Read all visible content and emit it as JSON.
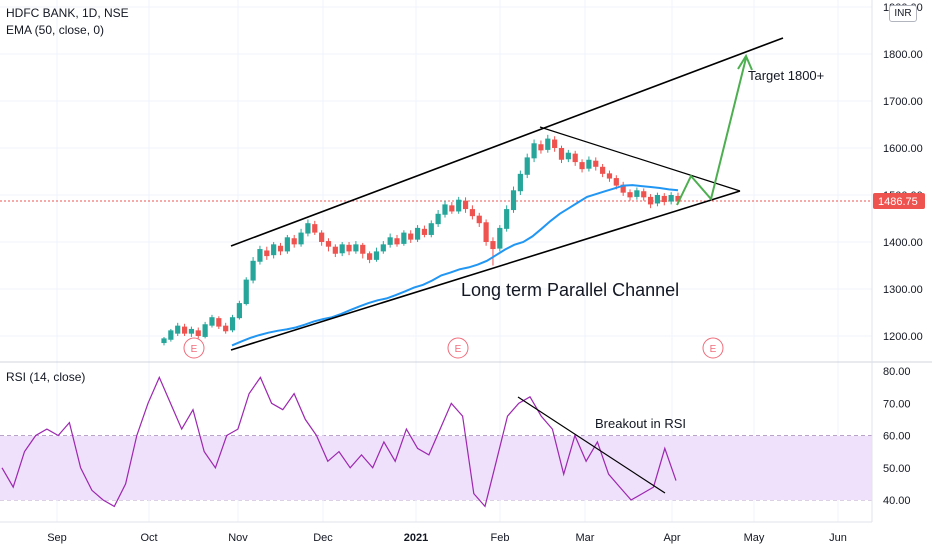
{
  "header": {
    "symbol": "HDFC BANK, 1D, NSE",
    "indicator": "EMA (50, close, 0)",
    "rsi_label": "RSI (14, close)",
    "currency": "INR"
  },
  "chart_data": {
    "type": "candlestick",
    "x_axis": {
      "labels": [
        "Sep",
        "Oct",
        "Nov",
        "Dec",
        "2021",
        "Feb",
        "Mar",
        "Apr",
        "May",
        "Jun"
      ],
      "bold_label": "2021"
    },
    "price_axis": {
      "ticks": [
        "1200.00",
        "1300.00",
        "1400.00",
        "1500.00",
        "1600.00",
        "1700.00",
        "1800.00",
        "1900.00"
      ],
      "range": [
        1170,
        1920
      ],
      "last_price": "1486.75",
      "last_price_color": "#ef5350"
    },
    "rsi_axis": {
      "ticks": [
        "40.00",
        "50.00",
        "60.00",
        "70.00",
        "80.00"
      ],
      "range": [
        33,
        82
      ],
      "band": [
        40,
        60
      ],
      "band_color": "#efe0fb"
    },
    "colors": {
      "up": "#26a69a",
      "down": "#ef5350",
      "ema": "#2196f3",
      "rsi": "#9c27b0",
      "projection": "#4caf50",
      "trendline": "#000000",
      "earnings": "#f06c7a"
    },
    "earnings_marker": "E",
    "ema": [
      [
        1180,
        1180
      ],
      [
        1188,
        1190
      ],
      [
        1196,
        1200
      ],
      [
        1202,
        1210
      ],
      [
        1207,
        1220
      ],
      [
        1211,
        1230
      ],
      [
        1214,
        1240
      ],
      [
        1218,
        1250
      ],
      [
        1224,
        1260
      ],
      [
        1231,
        1270
      ],
      [
        1236,
        1280
      ],
      [
        1240,
        1290
      ],
      [
        1247,
        1300
      ],
      [
        1255,
        1310
      ],
      [
        1263,
        1320
      ],
      [
        1270,
        1330
      ],
      [
        1276,
        1340
      ],
      [
        1280,
        1350
      ],
      [
        1287,
        1360
      ],
      [
        1295,
        1370
      ],
      [
        1303,
        1380
      ],
      [
        1309,
        1390
      ],
      [
        1318,
        1400
      ],
      [
        1329,
        1410
      ],
      [
        1335,
        1420
      ],
      [
        1342,
        1430
      ],
      [
        1346,
        1440
      ],
      [
        1352,
        1450
      ],
      [
        1360,
        1460
      ],
      [
        1372,
        1470
      ],
      [
        1384,
        1480
      ],
      [
        1394,
        1490
      ],
      [
        1400,
        1500
      ],
      [
        1412,
        1510
      ],
      [
        1428,
        1520
      ],
      [
        1445,
        1530
      ],
      [
        1460,
        1540
      ],
      [
        1472,
        1550
      ],
      [
        1484,
        1560
      ],
      [
        1496,
        1570
      ],
      [
        1502,
        1580
      ],
      [
        1508,
        1590
      ],
      [
        1514,
        1600
      ],
      [
        1520,
        1610
      ],
      [
        1521,
        1620
      ],
      [
        1519,
        1630
      ],
      [
        1517,
        1640
      ],
      [
        1515,
        1650
      ],
      [
        1512,
        1660
      ],
      [
        1510,
        1670
      ]
    ],
    "rsi": [
      [
        50,
        1000
      ],
      [
        44,
        1005
      ],
      [
        55,
        1015
      ],
      [
        60,
        1025
      ],
      [
        62,
        1035
      ],
      [
        60,
        1045
      ],
      [
        64,
        1055
      ],
      [
        50,
        1065
      ],
      [
        43,
        1075
      ],
      [
        40,
        1085
      ],
      [
        38,
        1100
      ],
      [
        45,
        1115
      ],
      [
        60,
        1130
      ],
      [
        70,
        1140
      ],
      [
        78,
        1150
      ],
      [
        70,
        1160
      ],
      [
        62,
        1170
      ],
      [
        68,
        1180
      ],
      [
        55,
        1190
      ],
      [
        50,
        1200
      ],
      [
        60,
        1210
      ],
      [
        62,
        1220
      ],
      [
        73,
        1230
      ],
      [
        78,
        1240
      ],
      [
        70,
        1250
      ],
      [
        68,
        1260
      ],
      [
        73,
        1270
      ],
      [
        65,
        1280
      ],
      [
        60,
        1290
      ],
      [
        52,
        1300
      ],
      [
        55,
        1310
      ],
      [
        50,
        1320
      ],
      [
        54,
        1330
      ],
      [
        50,
        1340
      ],
      [
        58,
        1350
      ],
      [
        52,
        1360
      ],
      [
        62,
        1370
      ],
      [
        56,
        1380
      ],
      [
        54,
        1390
      ],
      [
        62,
        1400
      ],
      [
        70,
        1410
      ],
      [
        66,
        1420
      ],
      [
        42,
        1430
      ],
      [
        38,
        1440
      ],
      [
        52,
        1450
      ],
      [
        66,
        1460
      ],
      [
        70,
        1470
      ],
      [
        72,
        1480
      ],
      [
        66,
        1490
      ],
      [
        62,
        1500
      ],
      [
        48,
        1510
      ],
      [
        60,
        1520
      ],
      [
        52,
        1530
      ],
      [
        58,
        1540
      ],
      [
        48,
        1550
      ],
      [
        44,
        1560
      ],
      [
        40,
        1570
      ],
      [
        42,
        1580
      ],
      [
        44,
        1590
      ],
      [
        56,
        1600
      ],
      [
        46,
        1610
      ]
    ],
    "candles": [
      [
        1185,
        1195,
        1180,
        1198
      ],
      [
        1192,
        1212,
        1188,
        1215
      ],
      [
        1205,
        1222,
        1200,
        1228
      ],
      [
        1220,
        1205,
        1200,
        1226
      ],
      [
        1205,
        1215,
        1198,
        1220
      ],
      [
        1212,
        1200,
        1195,
        1218
      ],
      [
        1198,
        1225,
        1195,
        1230
      ],
      [
        1222,
        1240,
        1218,
        1245
      ],
      [
        1238,
        1220,
        1215,
        1242
      ],
      [
        1222,
        1210,
        1205,
        1228
      ],
      [
        1212,
        1240,
        1208,
        1245
      ],
      [
        1238,
        1270,
        1235,
        1275
      ],
      [
        1268,
        1320,
        1265,
        1325
      ],
      [
        1318,
        1360,
        1312,
        1368
      ],
      [
        1358,
        1385,
        1352,
        1392
      ],
      [
        1382,
        1370,
        1362,
        1390
      ],
      [
        1372,
        1395,
        1365,
        1400
      ],
      [
        1392,
        1380,
        1372,
        1398
      ],
      [
        1380,
        1410,
        1375,
        1415
      ],
      [
        1408,
        1395,
        1388,
        1415
      ],
      [
        1395,
        1420,
        1390,
        1428
      ],
      [
        1418,
        1440,
        1412,
        1448
      ],
      [
        1438,
        1420,
        1415,
        1445
      ],
      [
        1420,
        1400,
        1392,
        1425
      ],
      [
        1402,
        1390,
        1380,
        1408
      ],
      [
        1390,
        1375,
        1368,
        1395
      ],
      [
        1376,
        1395,
        1370,
        1400
      ],
      [
        1394,
        1380,
        1372,
        1400
      ],
      [
        1380,
        1395,
        1375,
        1402
      ],
      [
        1394,
        1375,
        1365,
        1398
      ],
      [
        1376,
        1362,
        1355,
        1380
      ],
      [
        1362,
        1380,
        1358,
        1388
      ],
      [
        1380,
        1395,
        1375,
        1402
      ],
      [
        1394,
        1410,
        1388,
        1418
      ],
      [
        1408,
        1395,
        1390,
        1415
      ],
      [
        1396,
        1420,
        1392,
        1425
      ],
      [
        1418,
        1405,
        1398,
        1425
      ],
      [
        1405,
        1430,
        1400,
        1436
      ],
      [
        1428,
        1415,
        1410,
        1435
      ],
      [
        1415,
        1440,
        1410,
        1446
      ],
      [
        1438,
        1460,
        1432,
        1468
      ],
      [
        1458,
        1480,
        1452,
        1488
      ],
      [
        1478,
        1465,
        1460,
        1485
      ],
      [
        1465,
        1490,
        1460,
        1496
      ],
      [
        1488,
        1470,
        1462,
        1495
      ],
      [
        1470,
        1455,
        1448,
        1478
      ],
      [
        1456,
        1440,
        1432,
        1462
      ],
      [
        1442,
        1400,
        1392,
        1448
      ],
      [
        1402,
        1385,
        1350,
        1410
      ],
      [
        1386,
        1430,
        1380,
        1436
      ],
      [
        1428,
        1470,
        1422,
        1478
      ],
      [
        1468,
        1510,
        1462,
        1518
      ],
      [
        1508,
        1545,
        1500,
        1552
      ],
      [
        1543,
        1580,
        1536,
        1588
      ],
      [
        1578,
        1610,
        1570,
        1618
      ],
      [
        1608,
        1595,
        1588,
        1616
      ],
      [
        1596,
        1620,
        1590,
        1628
      ],
      [
        1618,
        1600,
        1592,
        1625
      ],
      [
        1600,
        1575,
        1568,
        1605
      ],
      [
        1576,
        1590,
        1570,
        1596
      ],
      [
        1588,
        1570,
        1562,
        1594
      ],
      [
        1570,
        1555,
        1548,
        1576
      ],
      [
        1556,
        1575,
        1550,
        1582
      ],
      [
        1573,
        1560,
        1552,
        1580
      ],
      [
        1560,
        1545,
        1538,
        1566
      ],
      [
        1546,
        1535,
        1528,
        1552
      ],
      [
        1536,
        1520,
        1512,
        1542
      ],
      [
        1522,
        1505,
        1498,
        1528
      ],
      [
        1506,
        1495,
        1488,
        1512
      ],
      [
        1496,
        1510,
        1490,
        1516
      ],
      [
        1508,
        1495,
        1488,
        1514
      ],
      [
        1496,
        1480,
        1472,
        1502
      ],
      [
        1482,
        1500,
        1476,
        1505
      ],
      [
        1498,
        1485,
        1478,
        1504
      ],
      [
        1486,
        1500,
        1480,
        1506
      ],
      [
        1498,
        1486,
        1480,
        1505
      ]
    ],
    "annotations": {
      "channel": "Long term Parallel Channel",
      "target": "Target 1800+",
      "rsi_breakout": "Breakout in RSI"
    }
  }
}
